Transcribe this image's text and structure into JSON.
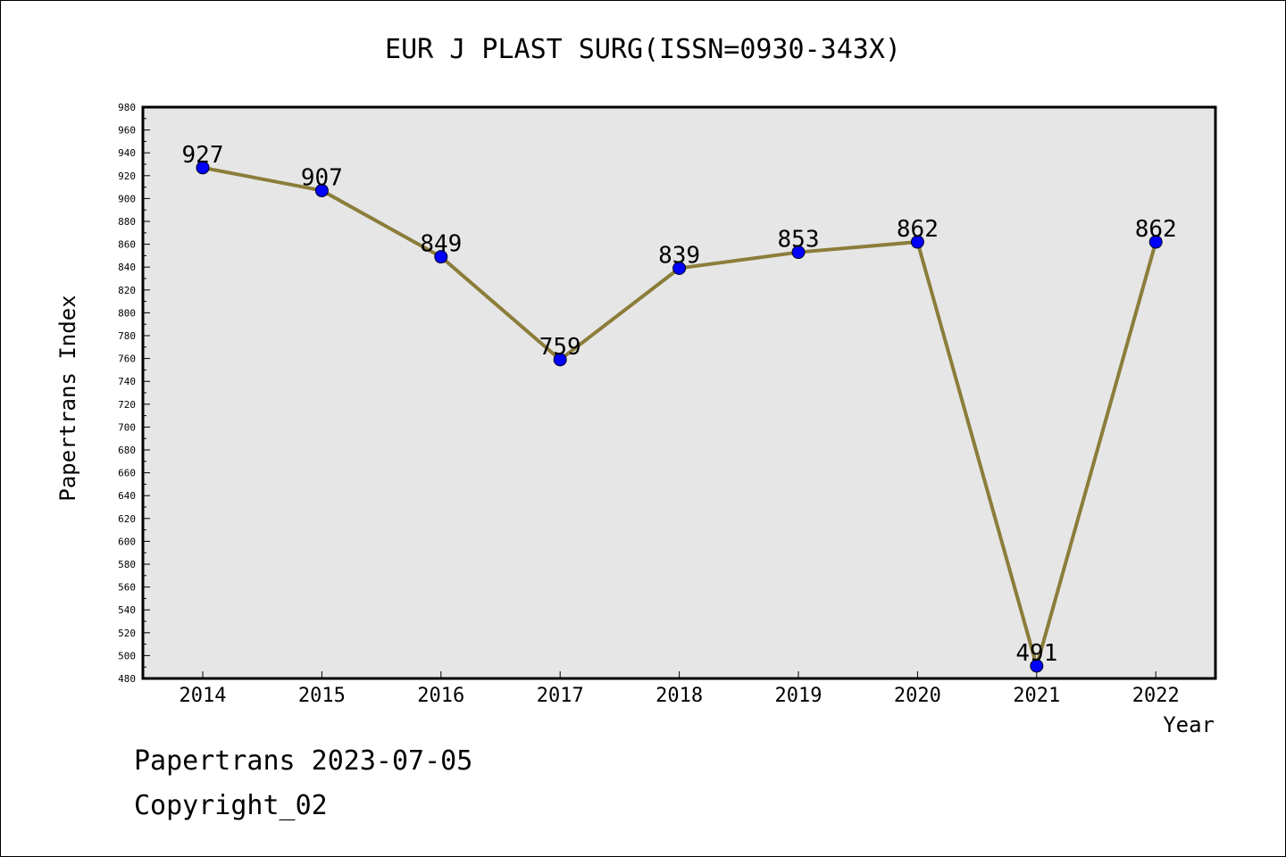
{
  "chart_data": {
    "type": "line",
    "title": "EUR J PLAST SURG(ISSN=0930-343X)",
    "xlabel": "Year",
    "ylabel": "Papertrans Index",
    "categories": [
      "2014",
      "2015",
      "2016",
      "2017",
      "2018",
      "2019",
      "2020",
      "2021",
      "2022"
    ],
    "series": [
      {
        "values": [
          927,
          907,
          849,
          759,
          839,
          853,
          862,
          491,
          862
        ]
      }
    ],
    "ylim": [
      480,
      980
    ],
    "yticks": [
      480,
      500,
      520,
      540,
      560,
      580,
      600,
      620,
      640,
      660,
      680,
      700,
      720,
      740,
      760,
      780,
      800,
      820,
      840,
      860,
      880,
      900,
      920,
      940,
      960,
      980
    ],
    "grid": false,
    "line_color": "#8B7D3A",
    "marker_color": "#0000FF",
    "plot_background": "#E6E6E6"
  },
  "footer": {
    "line1": "Papertrans 2023-07-05",
    "line2": "Copyright_02"
  }
}
